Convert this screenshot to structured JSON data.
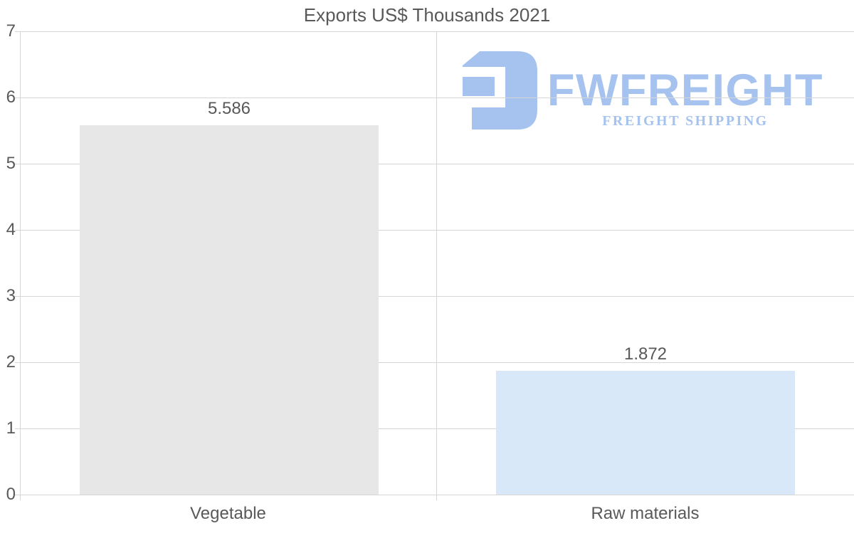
{
  "title": "Exports US$ Thousands 2021",
  "logo": {
    "brand": "FWFREIGHT",
    "tagline": "FREIGHT SHIPPING",
    "color": "#a6c2ee",
    "mark": "fwfreight-monogram"
  },
  "colors": {
    "background": "#ffffff",
    "grid": "#d6d6d6",
    "text": "#595959",
    "bar_vegetable": "#e7e7e7",
    "bar_raw_materials": "#d9e8f9"
  },
  "chart_data": {
    "type": "bar",
    "title": "Exports US$ Thousands 2021",
    "categories": [
      "Vegetable",
      "Raw materials"
    ],
    "values": [
      5.586,
      1.872
    ],
    "value_labels": [
      "5.586",
      "1.872"
    ],
    "bar_colors": [
      "#e7e7e7",
      "#d9e8f9"
    ],
    "xlabel": "",
    "ylabel": "",
    "ylim": [
      0,
      7
    ],
    "yticks": [
      0,
      1,
      2,
      3,
      4,
      5,
      6,
      7
    ],
    "grid": true,
    "legend_position": "none"
  }
}
